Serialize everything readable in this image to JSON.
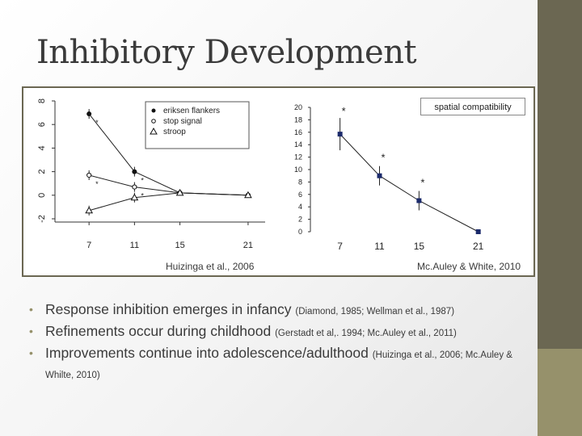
{
  "slide": {
    "title": "Inhibitory Development",
    "colors": {
      "sidebar": "#6b6752",
      "sidebar_accent": "#96916b",
      "title": "#3a3a3a",
      "bullet": "#96916b"
    },
    "citations": {
      "left": "Huizinga et al., 2006",
      "right": "Mc.Auley & White, 2010"
    },
    "bullets": [
      {
        "text": "Response inhibition emerges in infancy",
        "ref": "(Diamond, 1985; Wellman et al., 1987)"
      },
      {
        "text": "Refinements occur during childhood",
        "ref": "(Gerstadt et al,. 1994; Mc.Auley et al., 2011)"
      },
      {
        "text": "Improvements continue into adolescence/adulthood",
        "ref": "(Huizinga et al., 2006; Mc.Auley & Whilte, 2010)"
      }
    ]
  },
  "chart_data": [
    {
      "type": "line",
      "title": "",
      "xlabel": "",
      "ylabel": "",
      "x": [
        7,
        11,
        15,
        21
      ],
      "x_ticks": [
        "7",
        "11",
        "15",
        "21"
      ],
      "ylim": [
        -2,
        8
      ],
      "y_ticks": [
        "-2",
        "0",
        "2",
        "4",
        "6",
        "8"
      ],
      "legend": [
        "eriksen flankers",
        "stop signal",
        "stroop"
      ],
      "legend_position": "top-right",
      "series": [
        {
          "name": "eriksen flankers",
          "marker": "filled-circle",
          "values": [
            6.9,
            2.0,
            0.2,
            0.0
          ],
          "annotations": [
            "*",
            "*",
            "",
            ""
          ]
        },
        {
          "name": "stop signal",
          "marker": "open-circle",
          "values": [
            1.7,
            0.7,
            0.2,
            0.0
          ],
          "annotations": [
            "*",
            "*",
            "",
            ""
          ]
        },
        {
          "name": "stroop",
          "marker": "open-triangle",
          "values": [
            -1.3,
            -0.2,
            0.2,
            0.0
          ],
          "annotations": [
            "",
            "",
            "",
            ""
          ]
        }
      ]
    },
    {
      "type": "line",
      "title": "",
      "xlabel": "",
      "ylabel": "",
      "legend": [
        "spatial compatibility"
      ],
      "x": [
        7,
        11,
        15,
        21
      ],
      "x_ticks": [
        "7",
        "11",
        "15",
        "21"
      ],
      "ylim": [
        0,
        20
      ],
      "y_ticks": [
        "0",
        "2",
        "4",
        "6",
        "8",
        "10",
        "12",
        "14",
        "16",
        "18",
        "20"
      ],
      "series": [
        {
          "name": "spatial compatibility",
          "marker": "filled-square",
          "values": [
            15.7,
            9.0,
            5.0,
            0.0
          ],
          "annotations": [
            "*",
            "*",
            "*",
            ""
          ]
        }
      ]
    }
  ]
}
